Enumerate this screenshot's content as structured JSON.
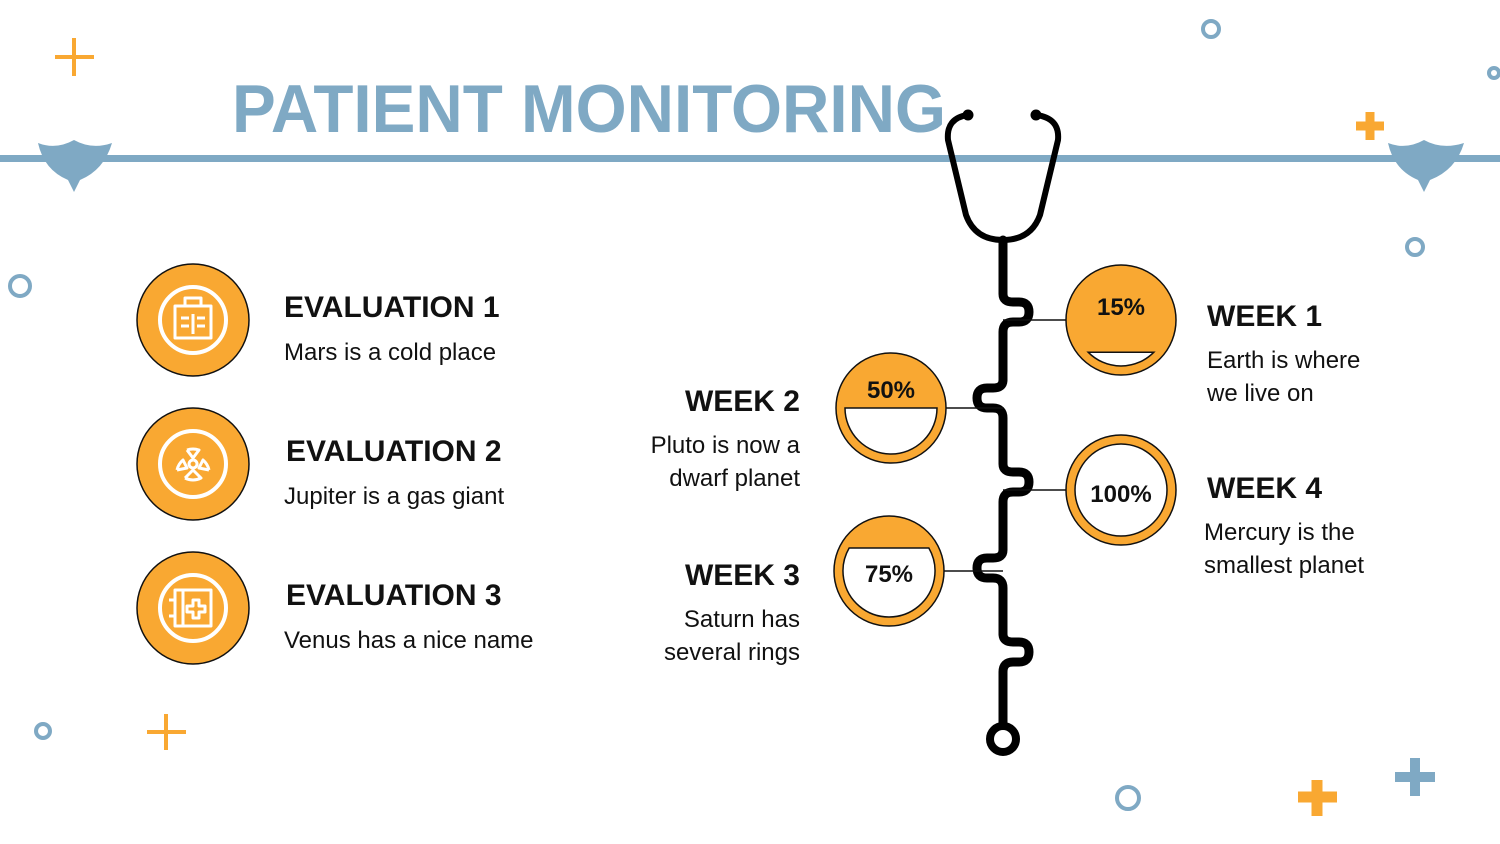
{
  "header": {
    "title": "PATIENT MONITORING"
  },
  "evaluations": [
    {
      "title": "EVALUATION 1",
      "text": "Mars is a cold place"
    },
    {
      "title": "EVALUATION 2",
      "text": "Jupiter is a gas giant"
    },
    {
      "title": "EVALUATION 3",
      "text": "Venus has a nice name"
    }
  ],
  "weeks": [
    {
      "title": "WEEK 1",
      "value": 15,
      "label": "15%",
      "lines": [
        "Earth is where",
        "we live on"
      ]
    },
    {
      "title": "WEEK 2",
      "value": 50,
      "label": "50%",
      "lines": [
        "Pluto is now a",
        "dwarf planet"
      ]
    },
    {
      "title": "WEEK 3",
      "value": 75,
      "label": "75%",
      "lines": [
        "Saturn has",
        "several rings"
      ]
    },
    {
      "title": "WEEK 4",
      "value": 100,
      "label": "100%",
      "lines": [
        "Mercury is the",
        "smallest planet"
      ]
    }
  ]
}
